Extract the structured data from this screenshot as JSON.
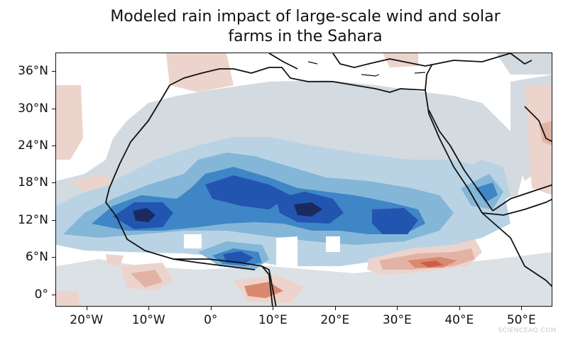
{
  "title_line1": "Modeled rain impact of large-scale wind and solar",
  "title_line2": "farms in the Sahara",
  "y_ticks": [
    "36°N",
    "30°N",
    "24°N",
    "18°N",
    "12°N",
    "6°N",
    "0°"
  ],
  "x_ticks": [
    "20°W",
    "10°W",
    "0°",
    "10°E",
    "20°E",
    "30°E",
    "40°E",
    "50°E"
  ],
  "lon_range": [
    -25,
    55
  ],
  "lat_range": [
    -2,
    39
  ],
  "y_tick_values": [
    36,
    30,
    24,
    18,
    12,
    6,
    0
  ],
  "x_tick_values": [
    -20,
    -10,
    0,
    10,
    20,
    30,
    40,
    50
  ],
  "colors": {
    "increase_strong": "#1b2a5e",
    "increase_high": "#2255b0",
    "increase_mid": "#3f86c6",
    "increase_low": "#84b6d8",
    "increase_slight": "#b9d3e4",
    "neutral_wet": "#d3dae0",
    "decrease_slight": "#ecd4cc",
    "decrease_low": "#e2b3a5",
    "decrease_mid": "#d9896f",
    "decrease_high": "#c9604a"
  },
  "watermark": "SCIENCEAQ.COM"
}
